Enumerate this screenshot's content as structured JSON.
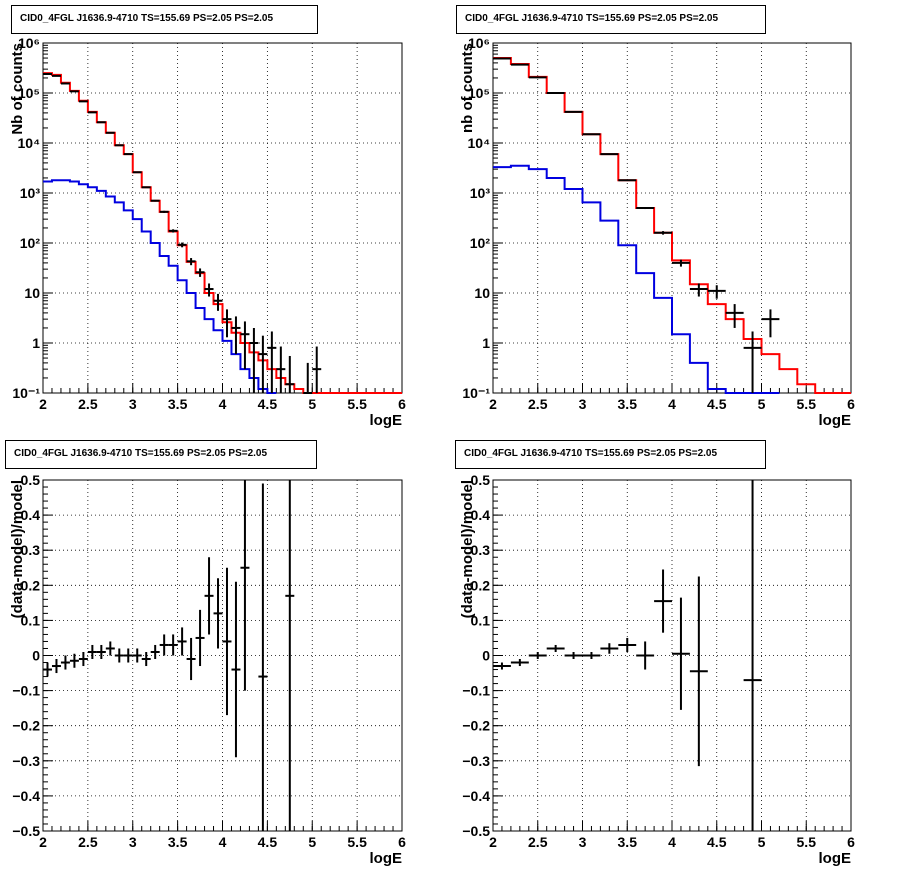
{
  "panels": [
    {
      "title": "CID0_4FGL J1636.9-4710 TS=155.69 PS=2.05 PS=2.05"
    },
    {
      "title": "CID0_4FGL J1636.9-4710 TS=155.69 PS=2.05 PS=2.05"
    },
    {
      "title": "CID0_4FGL J1636.9-4710 TS=155.69 PS=2.05 PS=2.05"
    },
    {
      "title": "CID0_4FGL J1636.9-4710 TS=155.69 PS=2.05 PS=2.05"
    }
  ],
  "colors": {
    "total_model": "#ff0000",
    "source_model": "#0000e0",
    "data": "#000000"
  },
  "chart_data": [
    {
      "type": "line",
      "title": "CID0_4FGL J1636.9-4710 TS=155.69 PS=2.05 PS=2.05",
      "xlabel": "logE",
      "ylabel": "Nb of counts",
      "xlim": [
        2,
        6
      ],
      "ylim": [
        0.1,
        1000000
      ],
      "yscale": "log",
      "grid": true,
      "xticks": [
        "2",
        "2.5",
        "3",
        "3.5",
        "4",
        "4.5",
        "5",
        "5.5",
        "6"
      ],
      "yticks": [
        "10⁻¹",
        "1",
        "10",
        "10²",
        "10³",
        "10⁴",
        "10⁵",
        "10⁶"
      ],
      "bin_width": 0.1,
      "series": [
        {
          "color": "#ff0000",
          "style": "step",
          "x": [
            2.0,
            2.1,
            2.2,
            2.3,
            2.4,
            2.5,
            2.6,
            2.7,
            2.8,
            2.9,
            3.0,
            3.1,
            3.2,
            3.3,
            3.4,
            3.5,
            3.6,
            3.7,
            3.8,
            3.9,
            4.0,
            4.1,
            4.2,
            4.3,
            4.4,
            4.5,
            4.6,
            4.7,
            4.8,
            4.9,
            5.0,
            5.1,
            5.2,
            5.3,
            5.4,
            5.5,
            5.6,
            5.7,
            5.8,
            5.9
          ],
          "values": [
            250000,
            230000,
            160000,
            110000,
            70000,
            42000,
            26000,
            16000,
            9000,
            6000,
            2600,
            1300,
            700,
            420,
            170,
            90,
            42,
            25,
            10,
            6,
            2.6,
            1.6,
            1,
            0.65,
            0.45,
            0.3,
            0.2,
            0.15,
            0.12,
            0.1,
            0.1,
            0.1,
            0.1,
            0.1,
            0.1,
            0.1,
            0.1,
            0.1,
            0.1,
            0.1
          ]
        },
        {
          "color": "#0000e0",
          "style": "step",
          "x": [
            2.0,
            2.1,
            2.2,
            2.3,
            2.4,
            2.5,
            2.6,
            2.7,
            2.8,
            2.9,
            3.0,
            3.1,
            3.2,
            3.3,
            3.4,
            3.5,
            3.6,
            3.7,
            3.8,
            3.9,
            4.0,
            4.1,
            4.2,
            4.3,
            4.4,
            4.5
          ],
          "values": [
            1700,
            1800,
            1800,
            1700,
            1500,
            1300,
            1100,
            850,
            650,
            450,
            300,
            170,
            100,
            55,
            35,
            18,
            10,
            5,
            3,
            1.8,
            1.1,
            0.6,
            0.3,
            0.2,
            0.12,
            0.1
          ]
        },
        {
          "color": "#000000",
          "style": "errorbar",
          "x": [
            2.05,
            2.15,
            2.25,
            2.35,
            2.45,
            2.55,
            2.65,
            2.75,
            2.85,
            2.95,
            3.05,
            3.15,
            3.25,
            3.35,
            3.45,
            3.55,
            3.65,
            3.75,
            3.85,
            3.95,
            4.05,
            4.15,
            4.25,
            4.35,
            4.45,
            4.55,
            4.65,
            4.75,
            4.95,
            5.05
          ],
          "values": [
            240000,
            220000,
            155000,
            108000,
            68000,
            41000,
            26000,
            16000,
            9000,
            6000,
            2600,
            1300,
            700,
            420,
            175,
            92,
            43,
            26,
            12,
            7,
            3,
            2,
            1.5,
            1,
            0.6,
            0.8,
            0.3,
            0.15,
            0.1,
            0.3
          ],
          "err": [
            600,
            500,
            400,
            330,
            260,
            200,
            160,
            130,
            95,
            77,
            51,
            36,
            26,
            20,
            13,
            10,
            7,
            5,
            3.5,
            2.6,
            1.7,
            1.4,
            1.2,
            1,
            0.8,
            0.9,
            0.55,
            0.4,
            0.3,
            0.55
          ]
        }
      ]
    },
    {
      "type": "line",
      "title": "CID0_4FGL J1636.9-4710 TS=155.69 PS=2.05 PS=2.05",
      "xlabel": "logE",
      "ylabel": "nb of counts",
      "xlim": [
        2,
        6
      ],
      "ylim": [
        0.1,
        1000000
      ],
      "yscale": "log",
      "grid": true,
      "xticks": [
        "2",
        "2.5",
        "3",
        "3.5",
        "4",
        "4.5",
        "5",
        "5.5",
        "6"
      ],
      "yticks": [
        "10⁻¹",
        "1",
        "10",
        "10²",
        "10³",
        "10⁴",
        "10⁵",
        "10⁶"
      ],
      "bin_width": 0.2,
      "series": [
        {
          "color": "#ff0000",
          "style": "step",
          "x": [
            2.0,
            2.2,
            2.4,
            2.6,
            2.8,
            3.0,
            3.2,
            3.4,
            3.6,
            3.8,
            4.0,
            4.2,
            4.4,
            4.6,
            4.8,
            5.0,
            5.2,
            5.4,
            5.6,
            5.8
          ],
          "values": [
            500000,
            380000,
            210000,
            100000,
            42000,
            15000,
            6000,
            1800,
            500,
            160,
            45,
            15,
            6,
            3,
            1.2,
            0.6,
            0.3,
            0.15,
            0.1,
            0.1
          ]
        },
        {
          "color": "#0000e0",
          "style": "step",
          "x": [
            2.0,
            2.2,
            2.4,
            2.6,
            2.8,
            3.0,
            3.2,
            3.4,
            3.6,
            3.8,
            4.0,
            4.2,
            4.4,
            4.6,
            4.8,
            5.0
          ],
          "values": [
            3300,
            3500,
            3000,
            2000,
            1200,
            650,
            280,
            90,
            25,
            8,
            1.5,
            0.4,
            0.12,
            0.1,
            0.1,
            0.1
          ]
        },
        {
          "color": "#000000",
          "style": "errorbar",
          "x": [
            2.1,
            2.3,
            2.5,
            2.7,
            2.9,
            3.1,
            3.3,
            3.5,
            3.7,
            3.9,
            4.1,
            4.3,
            4.5,
            4.7,
            4.9,
            5.1
          ],
          "values": [
            490000,
            370000,
            205000,
            100000,
            42000,
            15000,
            6000,
            1800,
            500,
            160,
            40,
            12,
            11,
            4,
            0.8,
            3
          ],
          "err": [
            700,
            600,
            450,
            320,
            200,
            120,
            77,
            42,
            22,
            13,
            6.3,
            3.5,
            3.3,
            2,
            0.9,
            1.7
          ]
        }
      ]
    },
    {
      "type": "scatter",
      "title": "CID0_4FGL J1636.9-4710 TS=155.69 PS=2.05 PS=2.05",
      "xlabel": "logE",
      "ylabel": "(data-model)/model",
      "xlim": [
        2,
        6
      ],
      "ylim": [
        -0.5,
        0.5
      ],
      "grid": true,
      "xticks": [
        "2",
        "2.5",
        "3",
        "3.5",
        "4",
        "4.5",
        "5",
        "5.5",
        "6"
      ],
      "yticks": [
        "−0.5",
        "−0.4",
        "−0.3",
        "−0.2",
        "−0.1",
        "0",
        "0.1",
        "0.2",
        "0.3",
        "0.4",
        "0.5"
      ],
      "bin_width": 0.1,
      "series": [
        {
          "color": "#000000",
          "style": "errorbar",
          "x": [
            2.05,
            2.15,
            2.25,
            2.35,
            2.45,
            2.55,
            2.65,
            2.75,
            2.85,
            2.95,
            3.05,
            3.15,
            3.25,
            3.35,
            3.45,
            3.55,
            3.65,
            3.75,
            3.85,
            3.95,
            4.05,
            4.15,
            4.25,
            4.45,
            4.75
          ],
          "values": [
            -0.04,
            -0.03,
            -0.02,
            -0.015,
            -0.01,
            0.01,
            0.01,
            0.02,
            0,
            0,
            0,
            -0.01,
            0.01,
            0.03,
            0.03,
            0.04,
            -0.01,
            0.05,
            0.17,
            0.12,
            0.04,
            -0.04,
            0.25,
            -0.06,
            0.17
          ],
          "err": [
            0.02,
            0.02,
            0.02,
            0.02,
            0.02,
            0.02,
            0.02,
            0.02,
            0.02,
            0.02,
            0.02,
            0.02,
            0.02,
            0.03,
            0.03,
            0.04,
            0.06,
            0.08,
            0.11,
            0.1,
            0.21,
            0.25,
            0.35,
            0.55,
            0.7
          ]
        }
      ]
    },
    {
      "type": "scatter",
      "title": "CID0_4FGL J1636.9-4710 TS=155.69 PS=2.05 PS=2.05",
      "xlabel": "logE",
      "ylabel": "(data-model)/model",
      "xlim": [
        2,
        6
      ],
      "ylim": [
        -0.5,
        0.5
      ],
      "grid": true,
      "xticks": [
        "2",
        "2.5",
        "3",
        "3.5",
        "4",
        "4.5",
        "5",
        "5.5",
        "6"
      ],
      "yticks": [
        "−0.5",
        "−0.4",
        "−0.3",
        "−0.2",
        "−0.1",
        "0",
        "0.1",
        "0.2",
        "0.3",
        "0.4",
        "0.5"
      ],
      "bin_width": 0.2,
      "series": [
        {
          "color": "#000000",
          "style": "errorbar",
          "x": [
            2.1,
            2.3,
            2.5,
            2.7,
            2.9,
            3.1,
            3.3,
            3.5,
            3.7,
            3.9,
            4.1,
            4.3,
            4.9
          ],
          "values": [
            -0.03,
            -0.02,
            0,
            0.02,
            0,
            0,
            0.02,
            0.03,
            0,
            0.155,
            0.005,
            -0.045,
            -0.07
          ],
          "err": [
            0.01,
            0.01,
            0.01,
            0.01,
            0.01,
            0.01,
            0.015,
            0.02,
            0.04,
            0.09,
            0.16,
            0.27,
            0.6
          ]
        }
      ]
    }
  ]
}
